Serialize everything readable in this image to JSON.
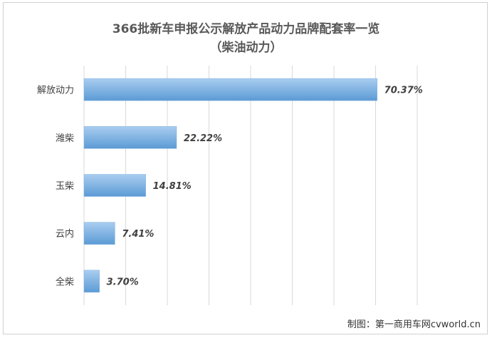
{
  "credit": "制图：第一商用车网cvworld.cn",
  "chart_data": {
    "type": "bar",
    "orientation": "horizontal",
    "title": "366批新车申报公示解放产品动力品牌配套率一览",
    "subtitle": "（柴油动力）",
    "categories": [
      "解放动力",
      "潍柴",
      "玉柴",
      "云内",
      "全柴"
    ],
    "values": [
      70.37,
      22.22,
      14.81,
      7.41,
      3.7
    ],
    "value_labels": [
      "70.37%",
      "22.22%",
      "14.81%",
      "7.41%",
      "3.70%"
    ],
    "unit": "%",
    "xlim": [
      0,
      80
    ],
    "grid": true,
    "legend": "none",
    "bar_color_top": "#a9cdf0",
    "bar_color_bottom": "#5b9bd5",
    "grid_color": "#d9d9d9"
  }
}
